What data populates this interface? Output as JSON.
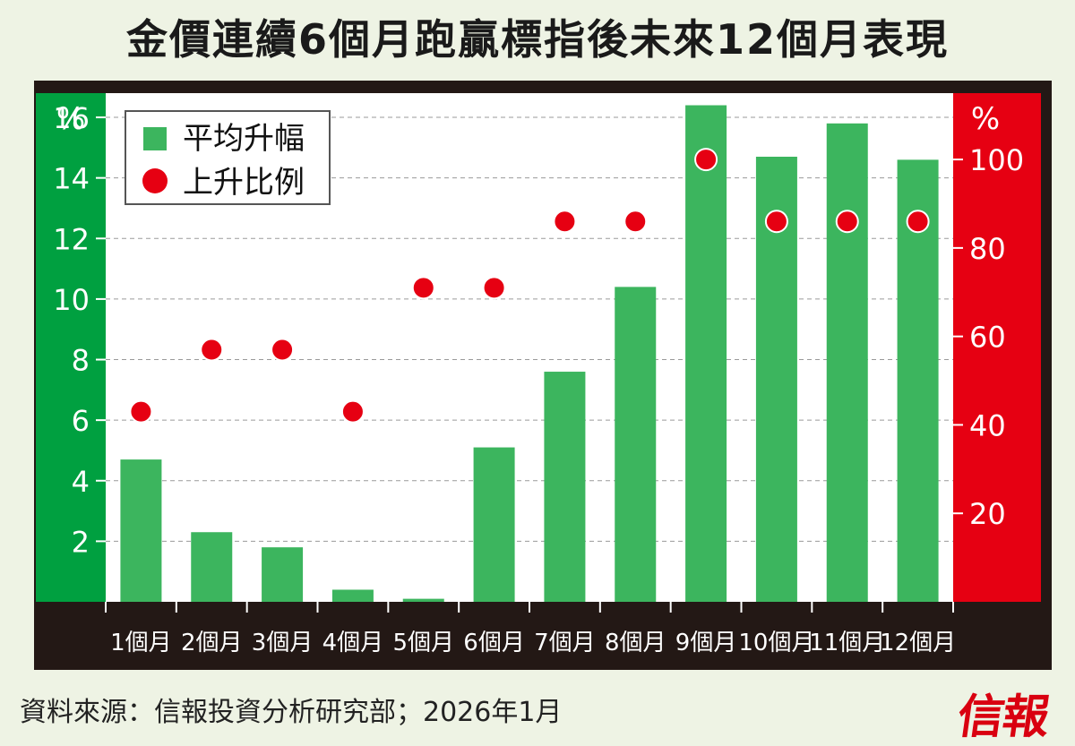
{
  "title": "金價連續6個月跑贏標指後未來12個月表現",
  "source": "資料來源：信報投資分析研究部；2026年1月",
  "brand": "信報",
  "colors": {
    "background": "#eef3e4",
    "frame": "#231815",
    "left_axis_band": "#00a040",
    "right_axis_band": "#e60012",
    "bar": "#3cb55e",
    "dot": "#e60012",
    "plot_bg": "#ffffff"
  },
  "chart_data": {
    "type": "bar",
    "categories": [
      "1個月",
      "2個月",
      "3個月",
      "4個月",
      "5個月",
      "6個月",
      "7個月",
      "8個月",
      "9個月",
      "10個月",
      "11個月",
      "12個月"
    ],
    "series": [
      {
        "name": "平均升幅",
        "type": "bar",
        "axis": "left",
        "values": [
          4.7,
          2.3,
          1.8,
          0.4,
          0.1,
          5.1,
          7.6,
          10.4,
          16.4,
          14.7,
          15.8,
          14.6
        ]
      },
      {
        "name": "上升比例",
        "type": "scatter",
        "axis": "right",
        "values": [
          43,
          57,
          57,
          43,
          71,
          71,
          86,
          86,
          100,
          86,
          86,
          86
        ]
      }
    ],
    "y_left": {
      "unit": "%",
      "ticks": [
        2,
        4,
        6,
        8,
        10,
        12,
        14,
        16
      ],
      "ylim": [
        0,
        16.8
      ]
    },
    "y_right": {
      "unit": "%",
      "ticks": [
        20,
        40,
        60,
        80,
        100
      ],
      "ylim": [
        0,
        115
      ]
    },
    "grid": "dashed horizontal",
    "legend_position": "top-left"
  }
}
